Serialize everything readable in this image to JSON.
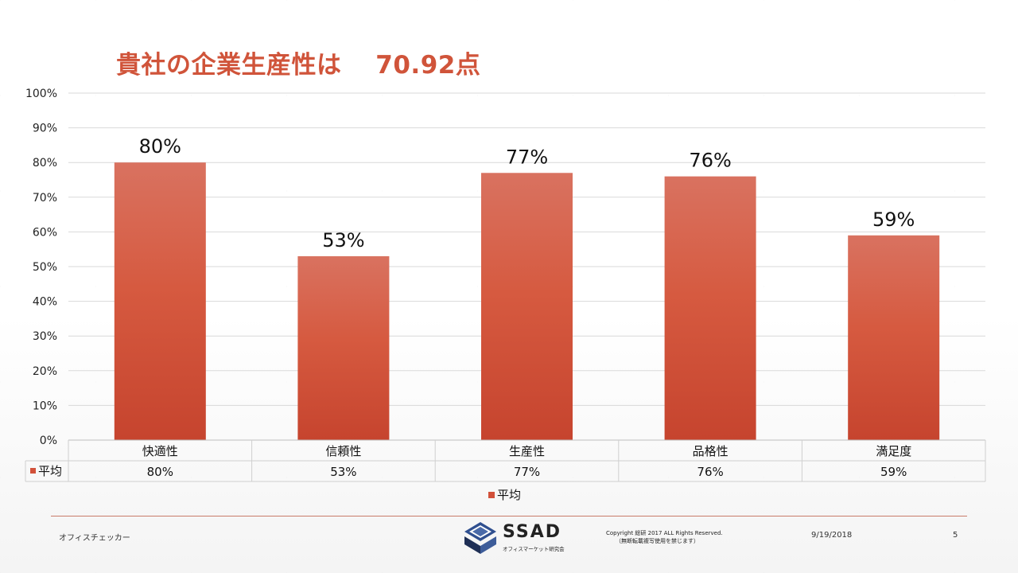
{
  "slide": {
    "title": "貴社の企業生産性は　 70.92点",
    "footer_left": "オフィスチェッカー",
    "footer_date": "9/19/2018",
    "page_number": "5",
    "copyright_line1": "Copyright 総研 2017 ALL Rights Reserved.",
    "copyright_line2": "（無断転載複写使用を禁じます）",
    "logo_text": "SSAD",
    "logo_subtitle": "オフィスマーケット研究会",
    "accent_color": "#d0543a"
  },
  "chart_data": {
    "type": "bar",
    "categories": [
      "快適性",
      "信頼性",
      "生産性",
      "品格性",
      "満足度"
    ],
    "series": [
      {
        "name": "平均",
        "values": [
          80,
          53,
          77,
          76,
          59
        ],
        "color": "#d2513a"
      }
    ],
    "ylim": [
      0,
      100
    ],
    "yticks": [
      0,
      10,
      20,
      30,
      40,
      50,
      60,
      70,
      80,
      90,
      100
    ],
    "tick_suffix": "%",
    "data_labels": [
      "80%",
      "53%",
      "77%",
      "76%",
      "59%"
    ],
    "table_values": [
      "80%",
      "53%",
      "77%",
      "76%",
      "59%"
    ],
    "table_series_label": "平均",
    "legend": {
      "position": "bottom",
      "label": "平均"
    },
    "grid": true
  }
}
